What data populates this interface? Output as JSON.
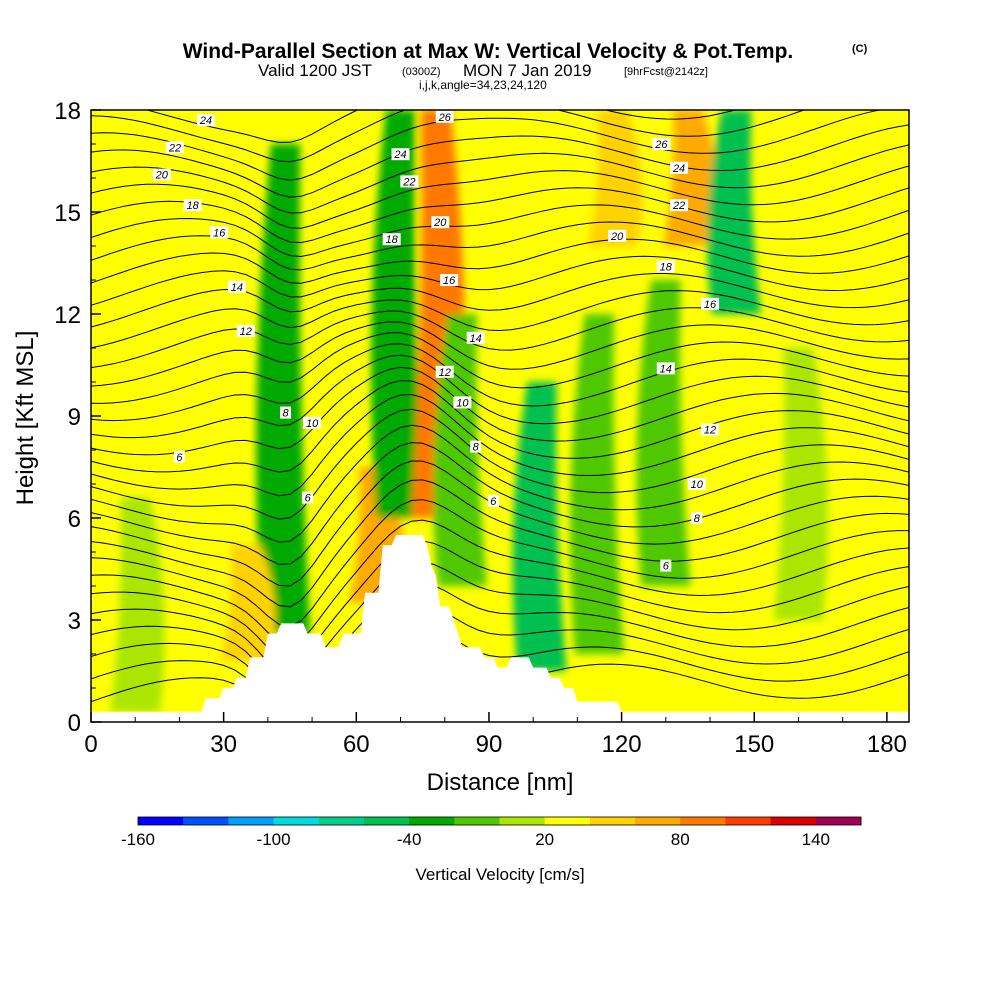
{
  "header": {
    "title": "Wind-Parallel Section at Max W: Vertical Velocity & Pot.Temp.",
    "title_tag": "(C)",
    "valid_prefix": "Valid 1200 JST",
    "valid_utc": "(0300Z)",
    "valid_date": "MON 7 Jan 2019",
    "valid_fcst": "[9hrFcst@2142z]",
    "indices": "i,j,k,angle=34,23,24,120"
  },
  "chart_data": {
    "type": "heatmap",
    "xlabel": "Distance [nm]",
    "ylabel": "Height [Kft MSL]",
    "xlim": [
      0,
      185
    ],
    "ylim": [
      0,
      18
    ],
    "x_ticks": [
      0,
      30,
      60,
      90,
      120,
      150,
      180
    ],
    "x_tick_labels": [
      "0",
      "30",
      "60",
      "90",
      "120",
      "150",
      "180"
    ],
    "y_ticks": [
      0,
      3,
      6,
      9,
      12,
      15,
      18
    ],
    "y_tick_labels": [
      "0",
      "3",
      "6",
      "9",
      "12",
      "15",
      "18"
    ],
    "colorbar": {
      "title": "Vertical Velocity [cm/s]",
      "min": -160,
      "max": 160,
      "step": 20,
      "tick_labels": [
        "-160",
        "-100",
        "-40",
        "20",
        "80",
        "140"
      ],
      "colors": [
        "#0000ff",
        "#0050ff",
        "#00a0ff",
        "#00dcdc",
        "#00d08c",
        "#00c050",
        "#00aa00",
        "#50c800",
        "#aae600",
        "#ffff00",
        "#ffd200",
        "#ffaa00",
        "#ff7800",
        "#ff3c00",
        "#dc0000",
        "#a00050"
      ]
    },
    "background_w": 20,
    "w_features": [
      {
        "x": 10,
        "z0": 0.3,
        "z1": 6.6,
        "w": 0
      },
      {
        "x": 44,
        "z0": 2.6,
        "z1": 17,
        "w": -40
      },
      {
        "x": 35,
        "z0": 1.8,
        "z1": 5.2,
        "w": 40
      },
      {
        "x": 64,
        "z0": 3.5,
        "z1": 7.5,
        "w": 60
      },
      {
        "x": 70,
        "z0": 6,
        "z1": 18,
        "w": -40
      },
      {
        "x": 78,
        "z0": 6,
        "z1": 18,
        "w": 80
      },
      {
        "x": 84,
        "z0": 4,
        "z1": 12,
        "w": -20
      },
      {
        "x": 102,
        "z0": 1.5,
        "z1": 10,
        "w": -60
      },
      {
        "x": 115,
        "z0": 2,
        "z1": 12,
        "w": -20
      },
      {
        "x": 118,
        "z0": 14,
        "z1": 18,
        "w": 40
      },
      {
        "x": 130,
        "z0": 4,
        "z1": 13,
        "w": -20
      },
      {
        "x": 135,
        "z0": 14,
        "z1": 18,
        "w": 60
      },
      {
        "x": 146,
        "z0": 12,
        "z1": 18,
        "w": -60
      },
      {
        "x": 160,
        "z0": 3,
        "z1": 11,
        "w": 0
      }
    ],
    "terrain_profile": [
      [
        0,
        0.3
      ],
      [
        25,
        0.3
      ],
      [
        26,
        0.7
      ],
      [
        29,
        0.7
      ],
      [
        30,
        1.0
      ],
      [
        32,
        1.0
      ],
      [
        33,
        1.3
      ],
      [
        35,
        1.3
      ],
      [
        36,
        1.9
      ],
      [
        39,
        1.9
      ],
      [
        40,
        2.6
      ],
      [
        42,
        2.6
      ],
      [
        43,
        2.9
      ],
      [
        48,
        2.9
      ],
      [
        49,
        2.6
      ],
      [
        52,
        2.6
      ],
      [
        53,
        2.2
      ],
      [
        56,
        2.2
      ],
      [
        57,
        2.6
      ],
      [
        60,
        2.6
      ],
      [
        61,
        2.6
      ],
      [
        62,
        3.8
      ],
      [
        65,
        3.8
      ],
      [
        66,
        5.2
      ],
      [
        68,
        5.2
      ],
      [
        69,
        5.5
      ],
      [
        75,
        5.5
      ],
      [
        76,
        5.2
      ],
      [
        77,
        4.6
      ],
      [
        78,
        4.3
      ],
      [
        79,
        3.4
      ],
      [
        81,
        3.4
      ],
      [
        82,
        3.0
      ],
      [
        84,
        2.2
      ],
      [
        88,
        2.2
      ],
      [
        89,
        1.9
      ],
      [
        91,
        1.9
      ],
      [
        92,
        1.6
      ],
      [
        94,
        1.6
      ],
      [
        95,
        1.9
      ],
      [
        99,
        1.9
      ],
      [
        100,
        1.6
      ],
      [
        103,
        1.6
      ],
      [
        104,
        1.3
      ],
      [
        106,
        1.3
      ],
      [
        107,
        1.0
      ],
      [
        109,
        1.0
      ],
      [
        110,
        0.6
      ],
      [
        119,
        0.6
      ],
      [
        120,
        0.3
      ],
      [
        185,
        0.3
      ]
    ],
    "theta_contours": {
      "unit": "C",
      "levels_labeled": [
        "6",
        "8",
        "10",
        "12",
        "14",
        "16",
        "18",
        "20",
        "22",
        "24",
        "26"
      ],
      "label_points": [
        {
          "text": "24",
          "x": 26,
          "z": 17.7
        },
        {
          "text": "22",
          "x": 19,
          "z": 16.9
        },
        {
          "text": "20",
          "x": 16,
          "z": 16.1
        },
        {
          "text": "18",
          "x": 23,
          "z": 15.2
        },
        {
          "text": "16",
          "x": 29,
          "z": 14.4
        },
        {
          "text": "14",
          "x": 33,
          "z": 12.8
        },
        {
          "text": "12",
          "x": 35,
          "z": 11.5
        },
        {
          "text": "8",
          "x": 44,
          "z": 9.1
        },
        {
          "text": "10",
          "x": 50,
          "z": 8.8
        },
        {
          "text": "6",
          "x": 20,
          "z": 7.8
        },
        {
          "text": "6",
          "x": 49,
          "z": 6.6
        },
        {
          "text": "26",
          "x": 80,
          "z": 17.8
        },
        {
          "text": "24",
          "x": 70,
          "z": 16.7
        },
        {
          "text": "22",
          "x": 72,
          "z": 15.9
        },
        {
          "text": "20",
          "x": 79,
          "z": 14.7
        },
        {
          "text": "18",
          "x": 68,
          "z": 14.2
        },
        {
          "text": "16",
          "x": 81,
          "z": 13.0
        },
        {
          "text": "14",
          "x": 87,
          "z": 11.3
        },
        {
          "text": "12",
          "x": 80,
          "z": 10.3
        },
        {
          "text": "10",
          "x": 84,
          "z": 9.4
        },
        {
          "text": "8",
          "x": 87,
          "z": 8.1
        },
        {
          "text": "6",
          "x": 91,
          "z": 6.5
        },
        {
          "text": "26",
          "x": 129,
          "z": 17.0
        },
        {
          "text": "24",
          "x": 133,
          "z": 16.3
        },
        {
          "text": "22",
          "x": 133,
          "z": 15.2
        },
        {
          "text": "20",
          "x": 119,
          "z": 14.3
        },
        {
          "text": "18",
          "x": 130,
          "z": 13.4
        },
        {
          "text": "16",
          "x": 140,
          "z": 12.3
        },
        {
          "text": "14",
          "x": 130,
          "z": 10.4
        },
        {
          "text": "12",
          "x": 140,
          "z": 8.6
        },
        {
          "text": "10",
          "x": 137,
          "z": 7.0
        },
        {
          "text": "8",
          "x": 137,
          "z": 6.0
        },
        {
          "text": "6",
          "x": 130,
          "z": 4.6
        }
      ]
    }
  }
}
